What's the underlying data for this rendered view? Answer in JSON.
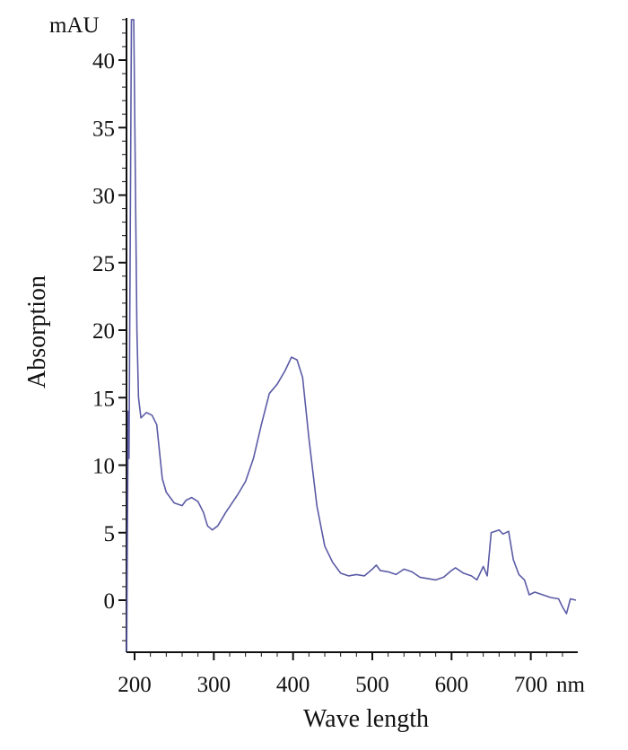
{
  "chart_data": {
    "type": "line",
    "title": "",
    "xlabel": "Wave length",
    "ylabel": "Absorption",
    "x_unit": "nm",
    "y_unit": "mAU",
    "xlim": [
      190,
      759
    ],
    "ylim": [
      -4,
      43
    ],
    "x_ticks": [
      200,
      300,
      400,
      500,
      600,
      700
    ],
    "x_tick_labels": [
      "200",
      "300",
      "400",
      "500",
      "600",
      "700"
    ],
    "y_ticks": [
      0,
      5,
      10,
      15,
      20,
      25,
      30,
      35,
      40
    ],
    "y_tick_labels": [
      "0",
      "5",
      "10",
      "15",
      "20",
      "25",
      "30",
      "35",
      "40"
    ],
    "grid": false,
    "line_color": "#5b5ba6",
    "series": [
      {
        "name": "absorption",
        "x": [
          190,
          192,
          193,
          196,
          199,
          203,
          205,
          208,
          215,
          222,
          228,
          235,
          240,
          250,
          260,
          265,
          272,
          280,
          287,
          292,
          298,
          305,
          315,
          330,
          340,
          350,
          360,
          370,
          380,
          390,
          398,
          405,
          412,
          420,
          430,
          440,
          450,
          460,
          470,
          480,
          490,
          500,
          505,
          510,
          520,
          530,
          540,
          550,
          560,
          570,
          580,
          590,
          600,
          605,
          615,
          625,
          632,
          640,
          645,
          650,
          660,
          665,
          672,
          678,
          685,
          692,
          698,
          705,
          715,
          725,
          735,
          740,
          745,
          750,
          757
        ],
        "y": [
          -3.8,
          14,
          10.5,
          43,
          43,
          20,
          15,
          13.5,
          13.9,
          13.7,
          13,
          9,
          8,
          7.2,
          7,
          7.4,
          7.6,
          7.3,
          6.5,
          5.5,
          5.2,
          5.5,
          6.5,
          7.8,
          8.8,
          10.5,
          13,
          15.3,
          16,
          17,
          18,
          17.8,
          16.5,
          12,
          7,
          4,
          2.8,
          2,
          1.8,
          1.9,
          1.8,
          2.3,
          2.6,
          2.2,
          2.1,
          1.9,
          2.3,
          2.1,
          1.7,
          1.6,
          1.5,
          1.7,
          2.2,
          2.4,
          2.0,
          1.8,
          1.5,
          2.5,
          1.8,
          5.0,
          5.2,
          4.9,
          5.1,
          3.0,
          1.9,
          1.5,
          0.4,
          0.6,
          0.4,
          0.2,
          0.1,
          -0.5,
          -1.0,
          0.1,
          0
        ]
      }
    ]
  }
}
